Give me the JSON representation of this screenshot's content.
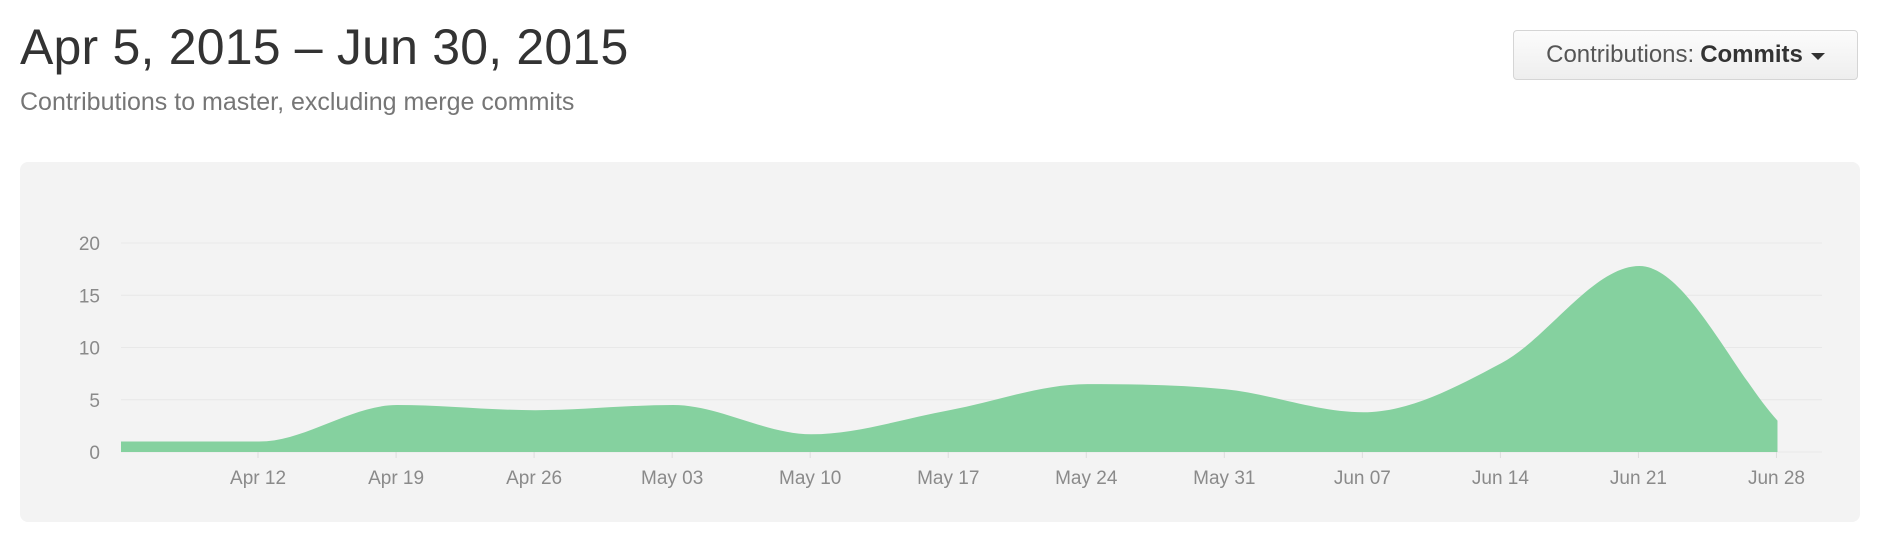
{
  "header": {
    "title": "Apr 5, 2015 – Jun 30, 2015",
    "subtitle": "Contributions to master, excluding merge commits"
  },
  "filter": {
    "prefix": "Contributions:",
    "value": "Commits"
  },
  "colors": {
    "area": "#85d19f",
    "panel": "#f3f3f3",
    "grid": "#e8e8e8"
  },
  "chart_data": {
    "type": "area",
    "title": "",
    "xlabel": "",
    "ylabel": "",
    "ylim": [
      0,
      20
    ],
    "grid": true,
    "x_ticks": [
      "Apr 12",
      "Apr 19",
      "Apr 26",
      "May 03",
      "May 10",
      "May 17",
      "May 24",
      "May 31",
      "Jun 07",
      "Jun 14",
      "Jun 21",
      "Jun 28"
    ],
    "y_ticks": [
      0,
      5,
      10,
      15,
      20
    ],
    "series": [
      {
        "x": [
          "2015-04-05",
          "2015-04-12",
          "2015-04-19",
          "2015-04-26",
          "2015-05-03",
          "2015-05-10",
          "2015-05-17",
          "2015-05-24",
          "2015-05-31",
          "2015-06-07",
          "2015-06-14",
          "2015-06-21",
          "2015-06-28"
        ],
        "values": [
          1,
          1,
          4.5,
          4,
          4.5,
          1.7,
          4,
          6.5,
          6,
          3.8,
          8.5,
          17.8,
          3
        ]
      }
    ]
  }
}
